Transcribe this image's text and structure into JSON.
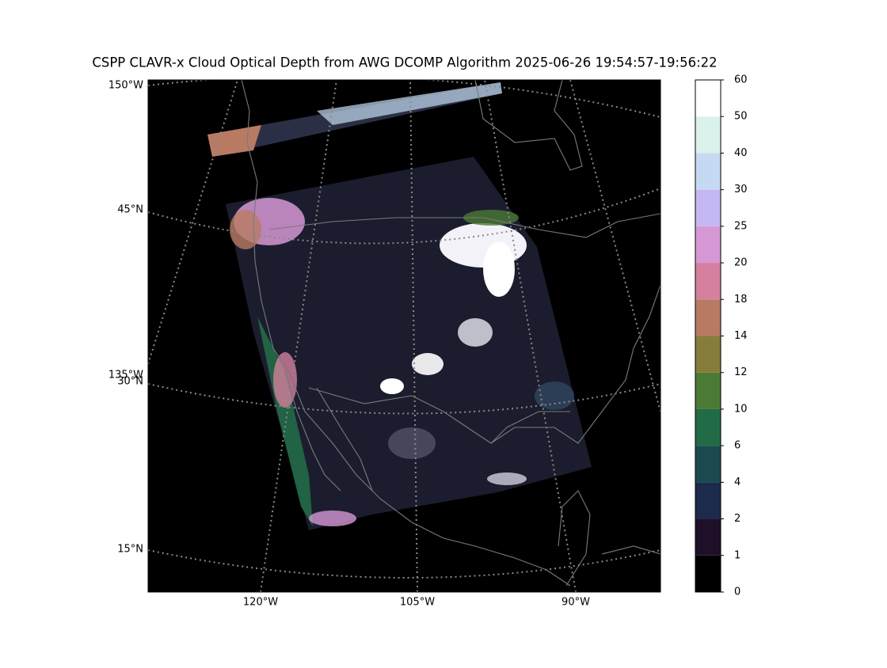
{
  "title": "CSPP CLAVR-x Cloud Optical Depth from AWG DCOMP Algorithm 2025-06-26 19:54:57-19:56:22",
  "map": {
    "left_labels": [
      "150°W",
      "45°N",
      "135°W",
      "30°N",
      "15°N"
    ],
    "bottom_labels": [
      "120°W",
      "105°W",
      "90°W"
    ]
  },
  "colorbar": {
    "ticks": [
      0,
      1,
      2,
      4,
      6,
      10,
      12,
      14,
      18,
      20,
      25,
      30,
      40,
      50,
      60
    ],
    "colors": [
      "#000000",
      "#1e1029",
      "#1c2a4b",
      "#1a4a50",
      "#226b47",
      "#4a7a35",
      "#867d3a",
      "#b97a63",
      "#d5809e",
      "#d598d4",
      "#c5b7f1",
      "#c5daf2",
      "#dbf2ec",
      "#ffffff"
    ]
  }
}
